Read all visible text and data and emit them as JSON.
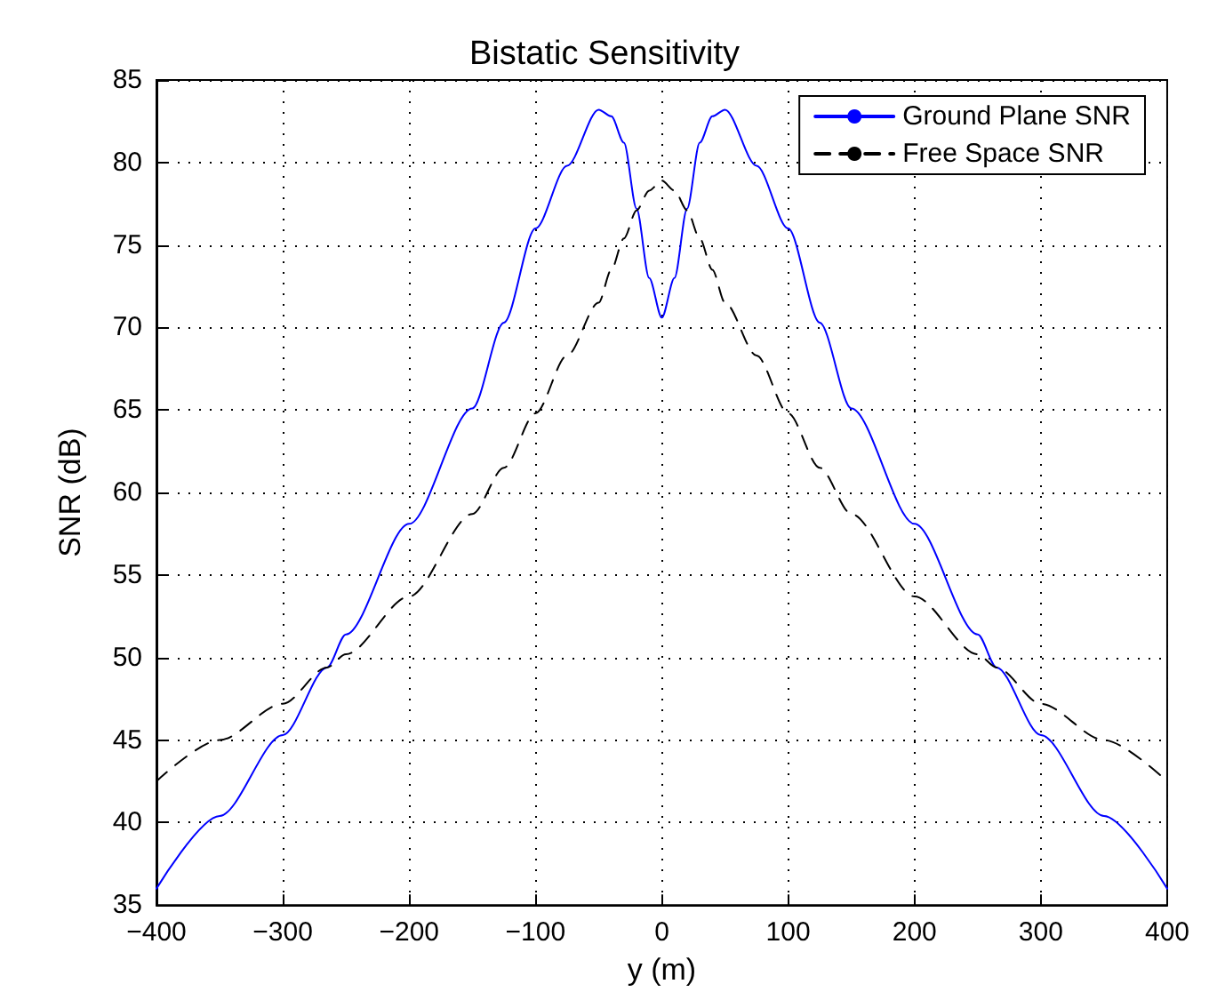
{
  "chart_data": {
    "type": "line",
    "title": "Bistatic Sensitivity",
    "xlabel": "y (m)",
    "ylabel": "SNR (dB)",
    "x": [
      -400,
      -350,
      -300,
      -265,
      -250,
      -200,
      -150,
      -125,
      -100,
      -75,
      -50,
      -40,
      -30,
      -20,
      -10,
      0,
      10,
      20,
      30,
      40,
      50,
      75,
      100,
      125,
      150,
      200,
      250,
      265,
      300,
      350,
      400
    ],
    "series": [
      {
        "name": "Ground Plane SNR",
        "color": "#0000ff",
        "line_style": "solid",
        "values": [
          36,
          40.4,
          45.3,
          49.4,
          51.4,
          58.1,
          65.1,
          70.3,
          76,
          79.8,
          83.2,
          82.8,
          81.2,
          77.2,
          73,
          70.6,
          73,
          77.2,
          81.2,
          82.8,
          83.2,
          79.8,
          76,
          70.3,
          65.1,
          58.1,
          51.4,
          49.4,
          45.3,
          40.4,
          36
        ]
      },
      {
        "name": "Free Space SNR",
        "color": "#000000",
        "line_style": "dashed",
        "values": [
          42.5,
          45,
          47.2,
          49.4,
          50.2,
          53.7,
          58.7,
          61.5,
          64.8,
          68.3,
          71.5,
          73.5,
          75.4,
          77.1,
          78.3,
          78.9,
          78.3,
          77.1,
          75.4,
          73.5,
          71.5,
          68.3,
          64.8,
          61.5,
          58.7,
          53.7,
          50.2,
          49.4,
          47.2,
          45,
          42.5
        ]
      }
    ],
    "xlim": [
      -400,
      400
    ],
    "xticks": [
      -400,
      -300,
      -200,
      -100,
      0,
      100,
      200,
      300,
      400
    ],
    "ylim": [
      35,
      85
    ],
    "yticks": [
      35,
      40,
      45,
      50,
      55,
      60,
      65,
      70,
      75,
      80,
      85
    ],
    "grid": true,
    "legend": "top right",
    "marker": "none"
  }
}
